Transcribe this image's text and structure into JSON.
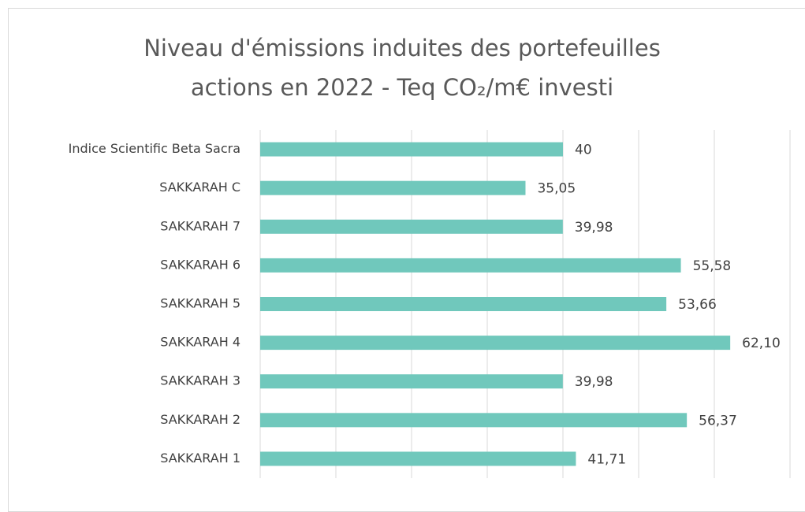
{
  "chart_data": {
    "type": "bar",
    "orientation": "horizontal",
    "title": "Niveau d'émissions induites des portefeuilles actions en 2022 - Teq CO₂/m€ investi",
    "categories": [
      "Indice Scientific Beta Sacra",
      "SAKKARAH C",
      "SAKKARAH 7",
      "SAKKARAH 6",
      "SAKKARAH 5",
      "SAKKARAH 4",
      "SAKKARAH 3",
      "SAKKARAH 2",
      "SAKKARAH 1"
    ],
    "values": [
      40,
      35.05,
      39.98,
      55.58,
      53.66,
      62.1,
      39.98,
      56.37,
      41.71
    ],
    "value_labels": [
      "40",
      "35,05",
      "39,98",
      "55,58",
      "53,66",
      "62,10",
      "39,98",
      "56,37",
      "41,71"
    ],
    "color": "#70c8bc",
    "xlim": [
      0,
      70
    ],
    "xticks": [
      0,
      10,
      20,
      30,
      40,
      50,
      60,
      70
    ],
    "grid": true
  }
}
